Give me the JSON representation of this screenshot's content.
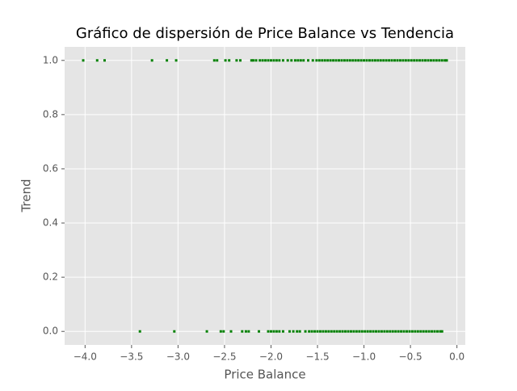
{
  "chart_data": {
    "type": "scatter",
    "title": "Gráfico de dispersión de Price Balance vs Tendencia",
    "x_label": "Price Balance",
    "y_label": "Trend",
    "color": "#008000",
    "grid": true,
    "xlim": [
      -4.22,
      0.09
    ],
    "ylim": [
      -0.05,
      1.05
    ],
    "xticks": [
      {
        "value": -4.0,
        "label": "−4.0"
      },
      {
        "value": -3.5,
        "label": "−3.5"
      },
      {
        "value": -3.0,
        "label": "−3.0"
      },
      {
        "value": -2.5,
        "label": "−2.5"
      },
      {
        "value": -2.0,
        "label": "−2.0"
      },
      {
        "value": -1.5,
        "label": "−1.5"
      },
      {
        "value": -1.0,
        "label": "−1.0"
      },
      {
        "value": -0.5,
        "label": "−0.5"
      },
      {
        "value": 0,
        "label": "0.0"
      }
    ],
    "yticks": [
      {
        "value": 0,
        "label": "0.0"
      },
      {
        "value": 0.2,
        "label": "0.2"
      },
      {
        "value": 0.4,
        "label": "0.4"
      },
      {
        "value": 0.6,
        "label": "0.6"
      },
      {
        "value": 0.8,
        "label": "0.8"
      },
      {
        "value": 1,
        "label": "1.0"
      }
    ],
    "x": [
      -4.02,
      -3.87,
      -3.79,
      -3.28,
      -3.12,
      -3.02,
      -2.61,
      -2.58,
      -2.49,
      -2.45,
      -2.37,
      -2.33,
      -2.21,
      -2.19,
      -2.16,
      -2.12,
      -2.09,
      -2.06,
      -2.03,
      -2.0,
      -1.97,
      -1.94,
      -1.91,
      -1.87,
      -1.82,
      -1.78,
      -1.74,
      -1.71,
      -1.68,
      -1.65,
      -1.6,
      -1.55,
      -1.51,
      -1.48,
      -1.45,
      -1.42,
      -1.39,
      -1.36,
      -1.33,
      -1.3,
      -1.27,
      -1.24,
      -1.21,
      -1.18,
      -1.15,
      -1.12,
      -1.09,
      -1.06,
      -1.03,
      -1.0,
      -0.97,
      -0.94,
      -0.91,
      -0.88,
      -0.85,
      -0.82,
      -0.79,
      -0.76,
      -0.73,
      -0.7,
      -0.67,
      -0.64,
      -0.61,
      -0.58,
      -0.55,
      -0.52,
      -0.49,
      -0.46,
      -0.43,
      -0.4,
      -0.37,
      -0.34,
      -0.31,
      -0.28,
      -0.25,
      -0.22,
      -0.19,
      -0.16,
      -0.13,
      -0.11,
      -3.41,
      -3.04,
      -2.69,
      -2.54,
      -2.51,
      -2.43,
      -2.31,
      -2.27,
      -2.24,
      -2.13,
      -2.03,
      -2.0,
      -1.97,
      -1.94,
      -1.91,
      -1.87,
      -1.8,
      -1.76,
      -1.72,
      -1.69,
      -1.63,
      -1.59,
      -1.56,
      -1.53,
      -1.5,
      -1.47,
      -1.44,
      -1.41,
      -1.38,
      -1.35,
      -1.32,
      -1.29,
      -1.26,
      -1.23,
      -1.2,
      -1.17,
      -1.14,
      -1.11,
      -1.08,
      -1.05,
      -1.02,
      -0.99,
      -0.96,
      -0.93,
      -0.9,
      -0.87,
      -0.84,
      -0.81,
      -0.78,
      -0.75,
      -0.72,
      -0.69,
      -0.66,
      -0.63,
      -0.6,
      -0.57,
      -0.54,
      -0.51,
      -0.48,
      -0.45,
      -0.42,
      -0.39,
      -0.36,
      -0.33,
      -0.3,
      -0.27,
      -0.24,
      -0.21,
      -0.18,
      -0.16
    ],
    "values": [
      1,
      1,
      1,
      1,
      1,
      1,
      1,
      1,
      1,
      1,
      1,
      1,
      1,
      1,
      1,
      1,
      1,
      1,
      1,
      1,
      1,
      1,
      1,
      1,
      1,
      1,
      1,
      1,
      1,
      1,
      1,
      1,
      1,
      1,
      1,
      1,
      1,
      1,
      1,
      1,
      1,
      1,
      1,
      1,
      1,
      1,
      1,
      1,
      1,
      1,
      1,
      1,
      1,
      1,
      1,
      1,
      1,
      1,
      1,
      1,
      1,
      1,
      1,
      1,
      1,
      1,
      1,
      1,
      1,
      1,
      1,
      1,
      1,
      1,
      1,
      1,
      1,
      1,
      1,
      1,
      0,
      0,
      0,
      0,
      0,
      0,
      0,
      0,
      0,
      0,
      0,
      0,
      0,
      0,
      0,
      0,
      0,
      0,
      0,
      0,
      0,
      0,
      0,
      0,
      0,
      0,
      0,
      0,
      0,
      0,
      0,
      0,
      0,
      0,
      0,
      0,
      0,
      0,
      0,
      0,
      0,
      0,
      0,
      0,
      0,
      0,
      0,
      0,
      0,
      0,
      0,
      0,
      0,
      0,
      0,
      0,
      0,
      0,
      0,
      0,
      0,
      0,
      0,
      0,
      0,
      0,
      0,
      0,
      0,
      0
    ]
  }
}
